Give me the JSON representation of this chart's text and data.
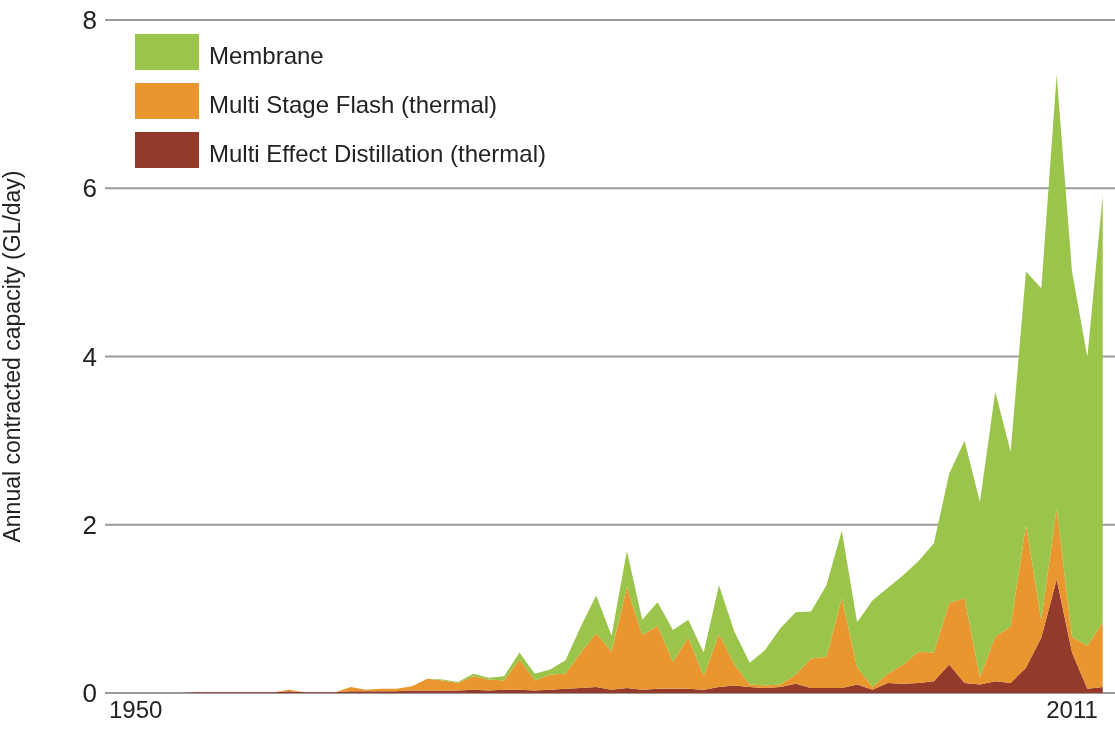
{
  "chart_data": {
    "type": "area",
    "stacked": true,
    "ylabel": "Annual contracted capacity (GL/day)",
    "x": [
      1950,
      1951,
      1952,
      1953,
      1954,
      1955,
      1956,
      1957,
      1958,
      1959,
      1960,
      1961,
      1962,
      1963,
      1964,
      1965,
      1966,
      1967,
      1968,
      1969,
      1970,
      1971,
      1972,
      1973,
      1974,
      1975,
      1976,
      1977,
      1978,
      1979,
      1980,
      1981,
      1982,
      1983,
      1984,
      1985,
      1986,
      1987,
      1988,
      1989,
      1990,
      1991,
      1992,
      1993,
      1994,
      1995,
      1996,
      1997,
      1998,
      1999,
      2000,
      2001,
      2002,
      2003,
      2004,
      2005,
      2006,
      2007,
      2008,
      2009,
      2010,
      2011,
      2012,
      2013
    ],
    "series": [
      {
        "name": "Multi Effect Distillation (thermal)",
        "color": "#943a2b",
        "values": [
          0,
          0,
          0,
          0,
          0.01,
          0.01,
          0.01,
          0.01,
          0.01,
          0.01,
          0.02,
          0.01,
          0.01,
          0.01,
          0.02,
          0.02,
          0.02,
          0.02,
          0.03,
          0.03,
          0.03,
          0.03,
          0.04,
          0.03,
          0.04,
          0.04,
          0.03,
          0.04,
          0.05,
          0.06,
          0.07,
          0.04,
          0.06,
          0.04,
          0.05,
          0.05,
          0.05,
          0.04,
          0.07,
          0.09,
          0.07,
          0.06,
          0.07,
          0.11,
          0.06,
          0.06,
          0.06,
          0.1,
          0.04,
          0.12,
          0.11,
          0.12,
          0.14,
          0.34,
          0.12,
          0.1,
          0.14,
          0.12,
          0.3,
          0.66,
          1.35,
          0.48,
          0.05,
          0.07
        ]
      },
      {
        "name": "Multi Stage Flash (thermal)",
        "color": "#ea962e",
        "values": [
          0,
          0,
          0,
          0,
          0,
          0,
          0,
          0,
          0,
          0,
          0.02,
          0,
          0,
          0,
          0.05,
          0.02,
          0.03,
          0.03,
          0.05,
          0.14,
          0.12,
          0.09,
          0.16,
          0.13,
          0.11,
          0.36,
          0.12,
          0.18,
          0.18,
          0.42,
          0.64,
          0.45,
          1.2,
          0.65,
          0.75,
          0.32,
          0.61,
          0.16,
          0.63,
          0.25,
          0.03,
          0.03,
          0.03,
          0.11,
          0.35,
          0.37,
          1.07,
          0.21,
          0.03,
          0.11,
          0.23,
          0.37,
          0.34,
          0.73,
          1.01,
          0.09,
          0.53,
          0.67,
          1.7,
          0.21,
          0.84,
          0.19,
          0.51,
          0.77
        ]
      },
      {
        "name": "Membrane",
        "color": "#9bc44a",
        "values": [
          0,
          0,
          0,
          0,
          0,
          0,
          0,
          0,
          0,
          0,
          0,
          0,
          0,
          0,
          0,
          0,
          0,
          0,
          0,
          0,
          0.01,
          0.01,
          0.03,
          0.02,
          0.05,
          0.08,
          0.08,
          0.06,
          0.16,
          0.31,
          0.45,
          0.19,
          0.43,
          0.18,
          0.28,
          0.38,
          0.21,
          0.28,
          0.58,
          0.39,
          0.26,
          0.42,
          0.67,
          0.74,
          0.56,
          0.85,
          0.8,
          0.53,
          1.03,
          1.02,
          1.06,
          1.08,
          1.3,
          1.54,
          1.87,
          2.08,
          2.91,
          2.08,
          3.01,
          3.94,
          5.16,
          4.34,
          3.43,
          5.08
        ]
      }
    ],
    "xlim": [
      1948,
      2013.8
    ],
    "xticks": [
      1950,
      2011
    ],
    "ylim": [
      0,
      8
    ],
    "yticks": [
      0,
      2,
      4,
      6,
      8
    ],
    "grid": "y",
    "legend": "top left"
  }
}
